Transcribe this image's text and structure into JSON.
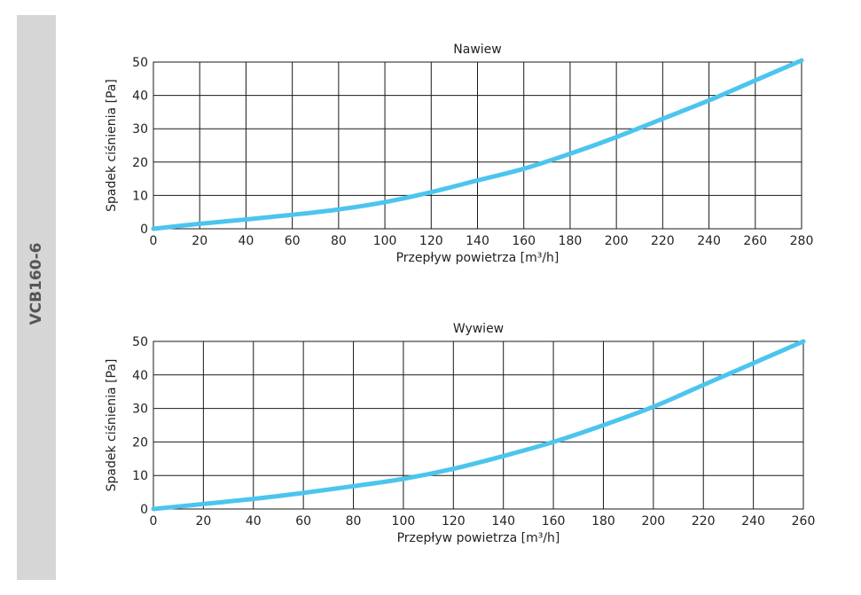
{
  "side_label": "VCB160-6",
  "colors": {
    "curve": "#4cc5ee",
    "grid": "#1a1a1a",
    "sidebar": "#d6d6d6"
  },
  "chart_data": [
    {
      "type": "line",
      "title": "Nawiew",
      "xlabel": "Przepływ powietrza [m³/h]",
      "ylabel": "Spadek ciśnienia [Pa]",
      "xlim": [
        0,
        280
      ],
      "ylim": [
        0,
        50
      ],
      "x_ticks": [
        0,
        20,
        40,
        60,
        80,
        100,
        120,
        140,
        160,
        180,
        200,
        220,
        240,
        260,
        280
      ],
      "y_ticks": [
        0,
        10,
        20,
        30,
        40,
        50
      ],
      "grid": true,
      "series": [
        {
          "x": [
            0,
            20,
            40,
            60,
            80,
            100,
            120,
            140,
            160,
            180,
            200,
            220,
            240,
            260,
            280
          ],
          "y": [
            0,
            1.5,
            2.8,
            4.2,
            5.8,
            8,
            11,
            14.5,
            18,
            22.5,
            27.5,
            33,
            38.5,
            44.5,
            50.5
          ]
        }
      ]
    },
    {
      "type": "line",
      "title": "Wywiew",
      "xlabel": "Przepływ powietrza [m³/h]",
      "ylabel": "Spadek ciśnienia [Pa]",
      "xlim": [
        0,
        260
      ],
      "ylim": [
        0,
        50
      ],
      "x_ticks": [
        0,
        20,
        40,
        60,
        80,
        100,
        120,
        140,
        160,
        180,
        200,
        220,
        240,
        260
      ],
      "y_ticks": [
        0,
        10,
        20,
        30,
        40,
        50
      ],
      "grid": true,
      "series": [
        {
          "x": [
            0,
            20,
            40,
            60,
            80,
            100,
            120,
            140,
            160,
            180,
            200,
            220,
            240,
            260
          ],
          "y": [
            0,
            1.5,
            3,
            4.8,
            6.8,
            9,
            12,
            15.8,
            20,
            25,
            30.5,
            37,
            43.5,
            50
          ]
        }
      ]
    }
  ]
}
